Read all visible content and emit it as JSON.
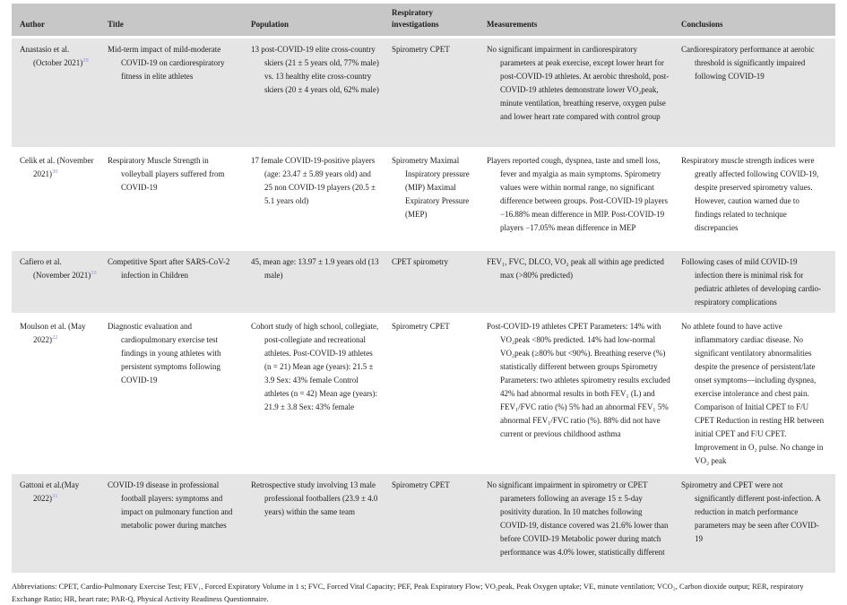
{
  "table": {
    "columns": [
      "Author",
      "Title",
      "Population",
      "Respiratory investigations",
      "Measurements",
      "Conclusions"
    ],
    "rows": [
      {
        "author": "Anastasio et al. (October 2021)",
        "ref": "29",
        "title": "Mid-term impact of mild-moderate COVID-19 on cardiorespiratory fitness in elite athletes",
        "population": "13 post-COVID-19 elite cross-country skiers (21 ± 5 years old, 77% male) vs. 13 healthy elite cross-country skiers (20 ± 4 years old, 62% male)",
        "investigations": "Spirometry CPET",
        "measurements": "No significant impairment in cardiorespiratory parameters at peak exercise, except lower heart for post-COVID-19 athletes. At aerobic threshold, post-COVID-19 athletes demonstrate lower VO₂peak, minute ventilation, breathing reserve, oxygen pulse and lower heart rate compared with control group",
        "conclusions": "Cardiorespiratory performance at aerobic threshold is significantly impaired following COVID-19"
      },
      {
        "author": "Celik et al. (November 2021)",
        "ref": "30",
        "title": "Respiratory Muscle Strength in volleyball players suffered from COVID-19",
        "population": "17 female COVID-19-positive players (age: 23.47 ± 5.89 years old) and 25 non COVID-19 players (20.5 ± 5.1 years old)",
        "investigations": "Spirometry Maximal Inspiratory pressure (MIP) Maximal Expiratory Pressure (MEP)",
        "measurements": "Players reported cough, dyspnea, taste and smell loss, fever and myalgia as main symptoms. Spirometry values were within normal range, no significant difference between groups. Post-COVID-19 players −16.88% mean difference in MIP. Post-COVID-19 players −17.05% mean difference in MEP",
        "conclusions": "Respiratory muscle strength indices were greatly affected following COVID-19, despite preserved spirometry values. However, caution warned due to findings related to technique discrepancies"
      },
      {
        "author": "Cafiero et al. (November 2021)",
        "ref": "33",
        "title": "Competitive Sport after SARS-CoV-2 infection in Children",
        "population": "45, mean age: 13.97 ± 1.9 years old (13 male)",
        "investigations": "CPET spirometry",
        "measurements": "FEV₁, FVC, DLCO, VO₂ peak all within age predicted max (>80% predicted)",
        "conclusions": "Following cases of mild COVID-19 infection there is minimal risk for pediatric athletes of developing cardio-respiratory complications"
      },
      {
        "author": "Moulson et al. (May 2022)",
        "ref": "22",
        "title": "Diagnostic evaluation and cardiopulmonary exercise test findings in young athletes with persistent symptoms following COVID-19",
        "population": "Cohort study of high school, collegiate, post-collegiate and recreational athletes. Post-COVID-19 athletes (n = 21) Mean age (years): 21.5 ± 3.9 Sex: 43% female Control athletes (n = 42) Mean age (years): 21.9 ± 3.8 Sex: 43% female",
        "investigations": "Spirometry CPET",
        "measurements": "Post-COVID-19 athletes CPET Parameters: 14% with VO₂peak <80% predicted. 14% had low-normal VO₂peak (≥80% but <90%). Breathing reserve (%) statistically different between groups Spirometry Parameters: two athletes spirometry results excluded 42% had abnormal results in both FEV₁ (L) and FEV₁/FVC ratio (%) 5% had an abnormal FEV₁ 5% abnormal FEV₁/FVC ratio (%). 88% did not have current or previous childhood asthma",
        "conclusions": "No athlete found to have active inflammatory cardiac disease. No significant ventilatory abnormalities despite the presence of persistent/late onset symptoms—including dyspnea, exercise intolerance and chest pain. Comparison of Initial CPET to F/U CPET Reduction in resting HR between initial CPET and F/U CPET. Improvement in O₂ pulse. No change in VO₂ peak"
      },
      {
        "author": "Gattoni et al.(May 2022)",
        "ref": "31",
        "title": "COVID-19 disease in professional football players: symptoms and impact on pulmonary function and metabolic power during matches",
        "population": "Retrospective study involving 13 male professional footballers (23.9 ± 4.0 years) within the same team",
        "investigations": "Spirometry CPET",
        "measurements": "No significant impairment in spirometry or CPET parameters following an average 15 ± 5-day positivity duration. In 10 matches following COVID-19, distance covered was 21.6% lower than before COVID-19 Metabolic power during match performance was 4.0% lower, statistically different",
        "conclusions": "Spirometry and CPET were not significantly different post-infection. A reduction in match performance parameters may be seen after COVID-19"
      }
    ]
  },
  "footer": {
    "abbreviations": "Abbreviations: CPET, Cardio-Pulmonary Exercise Test; FEV₁, Forced Expiratory Volume in 1 s; FVC, Forced Vital Capacity; PEF, Peak Expiratory Flow; VO₂peak, Peak Oxygen uptake; VE, minute ventilation; VCO₂, Carbon dioxide output; RER, respiratory Exchange Ratio; HR, heart rate; PAR-Q, Physical Activity Readiness Questionnaire."
  }
}
